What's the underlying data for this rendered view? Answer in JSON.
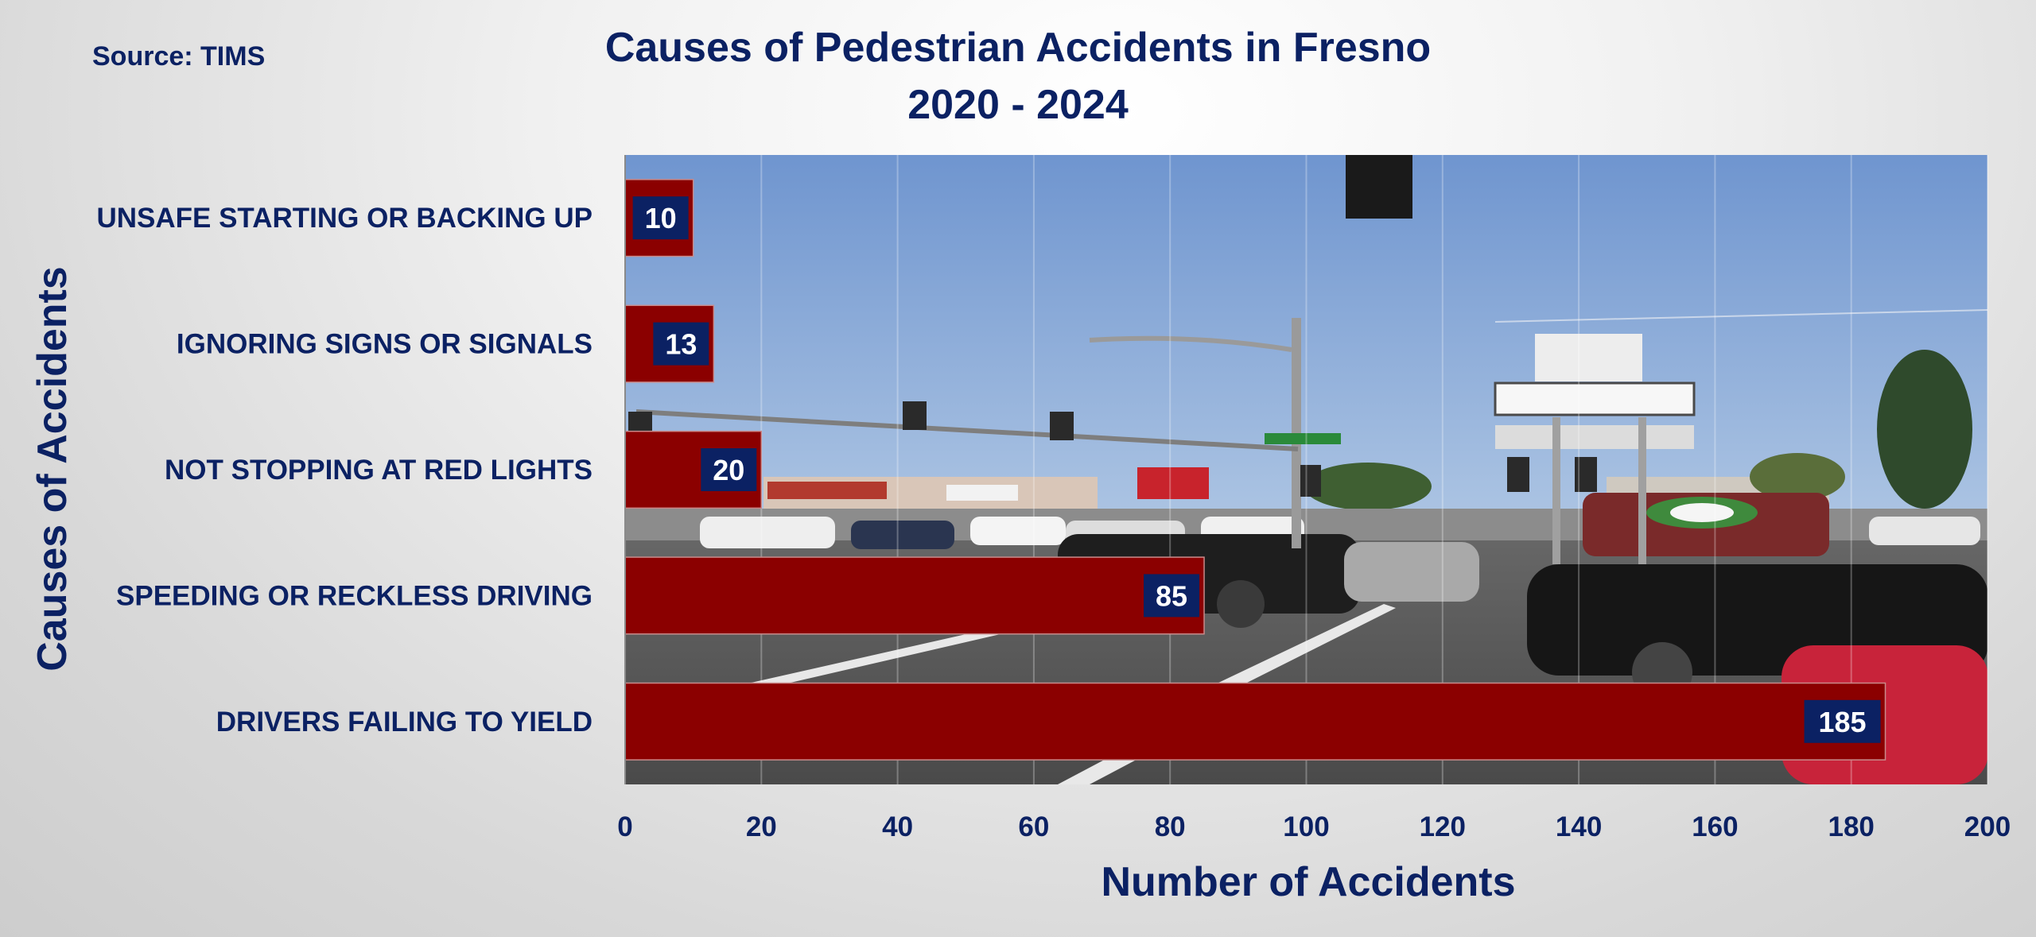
{
  "source": "Source: TIMS",
  "title_line1": "Causes of Pedestrian Accidents in Fresno",
  "title_line2": "2020 - 2024",
  "colors": {
    "bar": "#8b0000",
    "text": "#0b2163",
    "value_box": "#0b2163",
    "background": "#e8e8e8"
  },
  "chart_data": {
    "type": "bar",
    "orientation": "horizontal",
    "title": "Causes of Pedestrian Accidents in Fresno 2020 - 2024",
    "xlabel": "Number of Accidents",
    "ylabel": "Causes of Accidents",
    "categories": [
      "UNSAFE STARTING OR BACKING UP",
      "IGNORING SIGNS OR SIGNALS",
      "NOT STOPPING AT RED LIGHTS",
      "SPEEDING OR RECKLESS DRIVING",
      "DRIVERS FAILING TO YIELD"
    ],
    "values": [
      10,
      13,
      20,
      85,
      185
    ],
    "xlim": [
      0,
      200
    ],
    "xticks": [
      0,
      20,
      40,
      60,
      80,
      100,
      120,
      140,
      160,
      180,
      200
    ],
    "grid": true,
    "data_labels": true,
    "plot_background": "street photograph"
  }
}
